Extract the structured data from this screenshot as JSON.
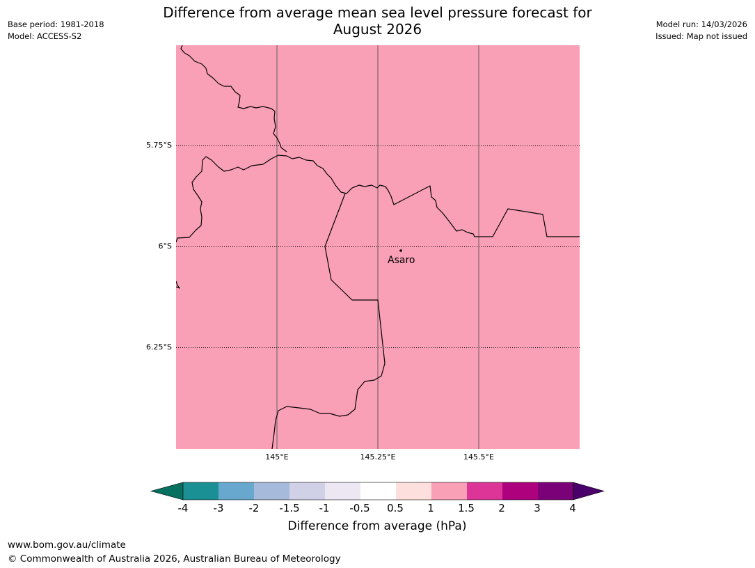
{
  "header": {
    "title_line1": "Difference from average mean sea level pressure forecast for",
    "title_line2": "August 2026",
    "base_period": "Base period: 1981-2018",
    "model": "Model: ACCESS-S2",
    "model_run": "Model run: 14/03/2026",
    "issued": "Issued: Map not issued"
  },
  "map": {
    "fill_color": "#f99fb6",
    "lat_labels": [
      "5.75°S",
      "6°S",
      "6.25°S"
    ],
    "lon_labels": [
      "145°E",
      "145.25°E",
      "145.5°E"
    ],
    "place": {
      "name": "Asaro",
      "lon": 145.3,
      "lat": -6.01
    }
  },
  "colorbar": {
    "label": "Difference from average (hPa)",
    "ticks": [
      "-4",
      "-3",
      "-2",
      "-1.5",
      "-1",
      "-0.5",
      "0.5",
      "1",
      "1.5",
      "2",
      "3",
      "4"
    ],
    "colors": [
      "#1a9095",
      "#68a8cf",
      "#a6bbdb",
      "#d0d1e6",
      "#ece7f2",
      "#ffffff",
      "#fde0dd",
      "#f99fb6",
      "#dd3497",
      "#ae017e",
      "#7a0177"
    ],
    "under_color": "#067060",
    "over_color": "#49006a"
  },
  "footer": {
    "url": "www.bom.gov.au/climate",
    "copyright": "© Commonwealth of Australia 2026, Australian Bureau of Meteorology"
  }
}
